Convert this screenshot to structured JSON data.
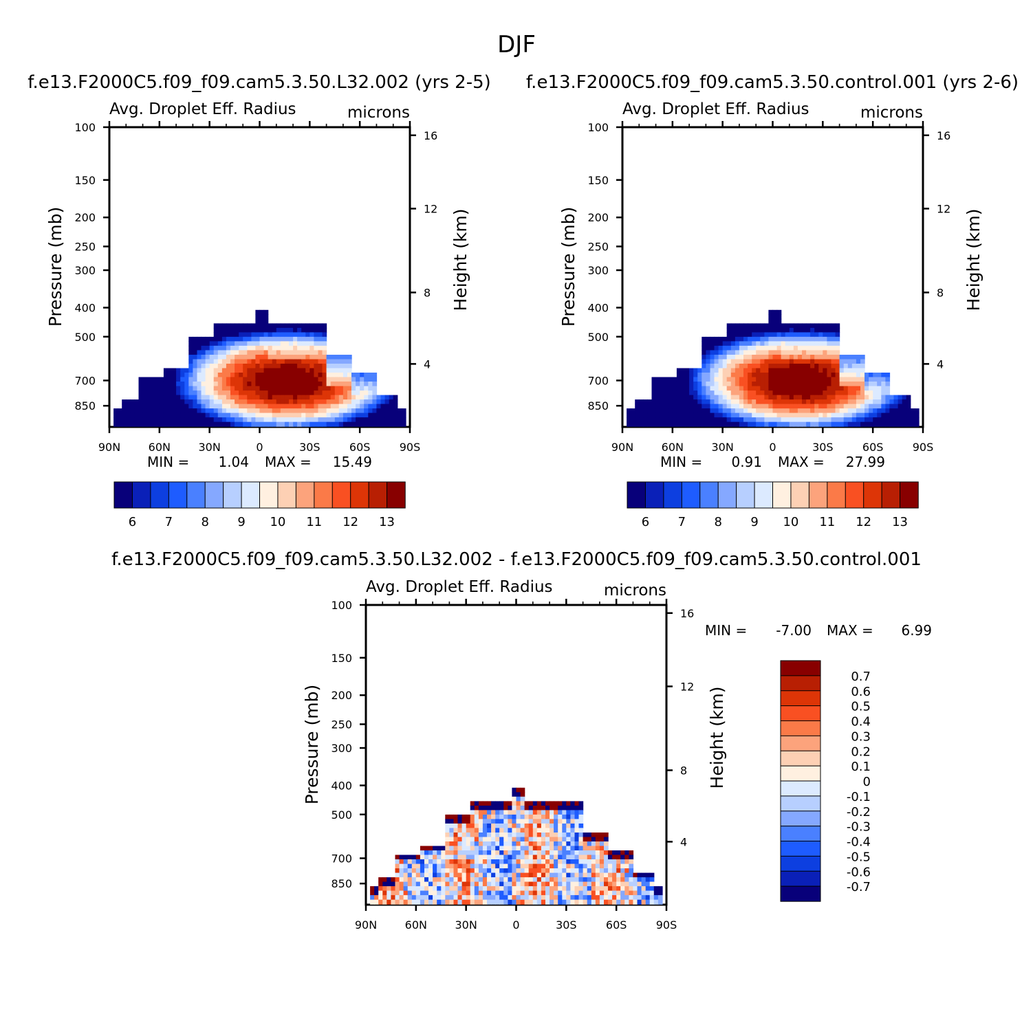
{
  "figure": {
    "title": "DJF"
  },
  "chart_data": [
    {
      "type": "heatmap",
      "case_title": "f.e13.F2000C5.f09_f09.cam5.3.50.L32.002 (yrs 2-5)",
      "variable": "Avg. Droplet Eff. Radius",
      "units": "microns",
      "ylabel": "Pressure (mb)",
      "y2label": "Height (km)",
      "x_ticks": [
        "90N",
        "60N",
        "30N",
        "0",
        "30S",
        "60S",
        "90S"
      ],
      "y_ticks": [
        "100",
        "150",
        "200",
        "250",
        "300",
        "400",
        "500",
        "700",
        "850"
      ],
      "y2_ticks": [
        "16",
        "12",
        "8",
        "4"
      ],
      "xlim": [
        90,
        -90
      ],
      "ylim": [
        1000,
        100
      ],
      "y_scale": "log",
      "min_label": "MIN =",
      "min": "1.04",
      "max_label": "MAX =",
      "max": "15.49",
      "colorbar_labels": [
        "6",
        "7",
        "8",
        "9",
        "10",
        "11",
        "12",
        "13"
      ],
      "colors": [
        "#08007a",
        "#0a20b8",
        "#0d3fe0",
        "#1e5cff",
        "#4a80ff",
        "#85a8ff",
        "#b7cfff",
        "#dceaff",
        "#fff0e0",
        "#fdd0b4",
        "#fca37c",
        "#fb7a48",
        "#f95022",
        "#dd3507",
        "#b81f03",
        "#880000"
      ]
    },
    {
      "type": "heatmap",
      "case_title": "f.e13.F2000C5.f09_f09.cam5.3.50.control.001 (yrs 2-6)",
      "variable": "Avg. Droplet Eff. Radius",
      "units": "microns",
      "ylabel": "Pressure (mb)",
      "y2label": "Height (km)",
      "x_ticks": [
        "90N",
        "60N",
        "30N",
        "0",
        "30S",
        "60S",
        "90S"
      ],
      "y_ticks": [
        "100",
        "150",
        "200",
        "250",
        "300",
        "400",
        "500",
        "700",
        "850"
      ],
      "y2_ticks": [
        "16",
        "12",
        "8",
        "4"
      ],
      "xlim": [
        90,
        -90
      ],
      "ylim": [
        1000,
        100
      ],
      "y_scale": "log",
      "min_label": "MIN =",
      "min": "0.91",
      "max_label": "MAX =",
      "max": "27.99",
      "colorbar_labels": [
        "6",
        "7",
        "8",
        "9",
        "10",
        "11",
        "12",
        "13"
      ],
      "colors": [
        "#08007a",
        "#0a20b8",
        "#0d3fe0",
        "#1e5cff",
        "#4a80ff",
        "#85a8ff",
        "#b7cfff",
        "#dceaff",
        "#fff0e0",
        "#fdd0b4",
        "#fca37c",
        "#fb7a48",
        "#f95022",
        "#dd3507",
        "#b81f03",
        "#880000"
      ]
    },
    {
      "type": "heatmap",
      "case_title": "f.e13.F2000C5.f09_f09.cam5.3.50.L32.002 - f.e13.F2000C5.f09_f09.cam5.3.50.control.001",
      "variable": "Avg. Droplet Eff. Radius",
      "units": "microns",
      "ylabel": "Pressure (mb)",
      "y2label": "Height (km)",
      "x_ticks": [
        "90N",
        "60N",
        "30N",
        "0",
        "30S",
        "60S",
        "90S"
      ],
      "y_ticks": [
        "100",
        "150",
        "200",
        "250",
        "300",
        "400",
        "500",
        "700",
        "850"
      ],
      "y2_ticks": [
        "16",
        "12",
        "8",
        "4"
      ],
      "xlim": [
        90,
        -90
      ],
      "ylim": [
        1000,
        100
      ],
      "y_scale": "log",
      "min_label": "MIN =",
      "min": "-7.00",
      "max_label": "MAX =",
      "max": "6.99",
      "colorbar_labels": [
        "0.7",
        "0.6",
        "0.5",
        "0.4",
        "0.3",
        "0.2",
        "0.1",
        "0",
        "-0.1",
        "-0.2",
        "-0.3",
        "-0.4",
        "-0.5",
        "-0.6",
        "-0.7"
      ],
      "colors": [
        "#880000",
        "#b81f03",
        "#dd3507",
        "#f95022",
        "#fb7a48",
        "#fca37c",
        "#fdd0b4",
        "#fff0e0",
        "#dceaff",
        "#b7cfff",
        "#85a8ff",
        "#4a80ff",
        "#1e5cff",
        "#0d3fe0",
        "#0a20b8",
        "#08007a"
      ]
    }
  ]
}
